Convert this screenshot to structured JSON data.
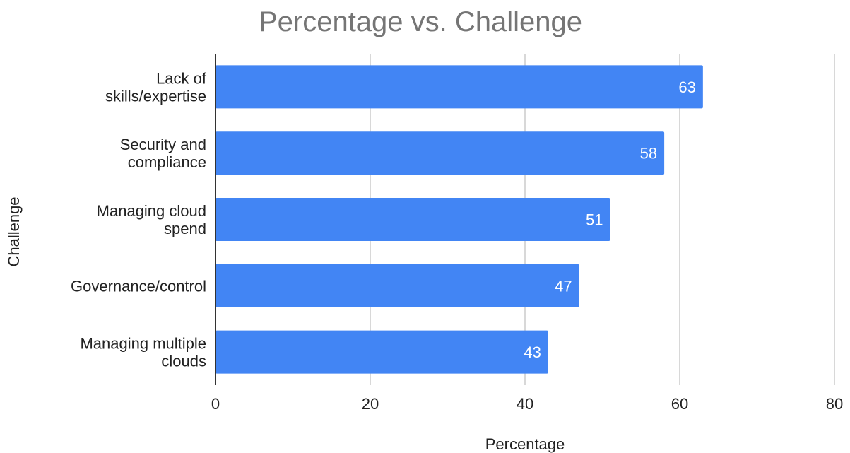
{
  "chart_data": {
    "type": "bar",
    "orientation": "horizontal",
    "title": "Percentage vs. Challenge",
    "xlabel": "Percentage",
    "ylabel": "Challenge",
    "categories": [
      [
        "Lack of",
        "skills/expertise"
      ],
      [
        "Security and",
        "compliance"
      ],
      [
        "Managing cloud",
        "spend"
      ],
      [
        "Governance/control"
      ],
      [
        "Managing multiple",
        "clouds"
      ]
    ],
    "values": [
      63,
      58,
      51,
      47,
      43
    ],
    "xlim": [
      0,
      80
    ],
    "xticks": [
      "0",
      "20",
      "40",
      "60",
      "80"
    ],
    "grid": true,
    "legend": "none",
    "colors": {
      "bar": "#4285f4",
      "grid": "#cccccc",
      "axis": "#333333",
      "data_label": "#ffffff"
    }
  }
}
